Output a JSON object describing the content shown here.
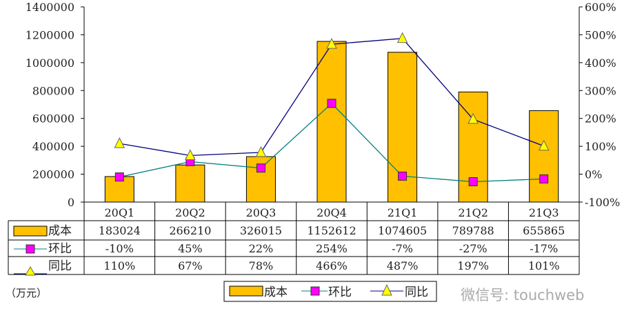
{
  "chart_data": {
    "type": "bar+line",
    "categories": [
      "20Q1",
      "20Q2",
      "20Q3",
      "20Q4",
      "21Q1",
      "21Q2",
      "21Q3"
    ],
    "series": [
      {
        "name": "成本",
        "type": "bar",
        "axis": "left",
        "color": "#FFC000",
        "values": [
          183024,
          266210,
          326015,
          1152612,
          1074605,
          789788,
          655865
        ]
      },
      {
        "name": "环比",
        "type": "line",
        "axis": "right",
        "color": "#008080",
        "marker": "square",
        "marker_color": "#FF00FF",
        "values": [
          -10,
          45,
          22,
          254,
          -7,
          -27,
          -17
        ]
      },
      {
        "name": "同比",
        "type": "line",
        "axis": "right",
        "color": "#000080",
        "marker": "triangle",
        "marker_color": "#FFFF00",
        "values": [
          110,
          67,
          78,
          466,
          487,
          197,
          101
        ]
      }
    ],
    "table_labels": {
      "bar": "成本",
      "qoq": "环比",
      "yoy": "同比"
    },
    "table_values": {
      "bar": [
        "183024",
        "266210",
        "326015",
        "1152612",
        "1074605",
        "789788",
        "655865"
      ],
      "qoq": [
        "-10%",
        "45%",
        "22%",
        "254%",
        "-7%",
        "-27%",
        "-17%"
      ],
      "yoy": [
        "110%",
        "67%",
        "78%",
        "466%",
        "487%",
        "197%",
        "101%"
      ]
    },
    "ylim_left": [
      0,
      1400000
    ],
    "yticks_left": [
      "1400000",
      "1200000",
      "1000000",
      "800000",
      "600000",
      "400000",
      "200000",
      "0"
    ],
    "ylim_right": [
      -100,
      600
    ],
    "yticks_right": [
      "600%",
      "500%",
      "400%",
      "300%",
      "200%",
      "100%",
      "0%",
      "-100%"
    ],
    "unit_label": "（万元）",
    "grid": false,
    "legend_position": "bottom"
  },
  "watermark": "微信号: touchweb"
}
